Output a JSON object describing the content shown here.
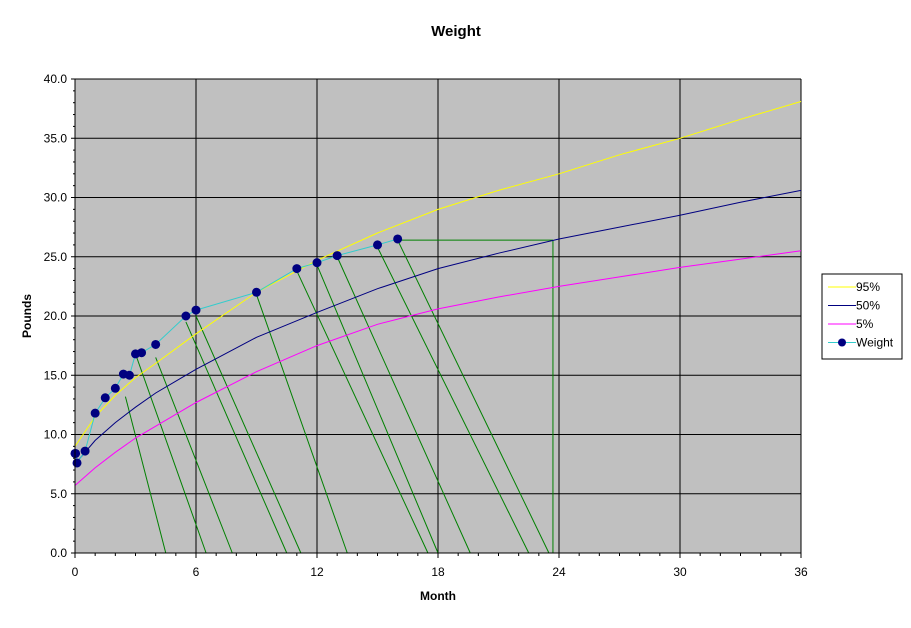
{
  "chart_data": {
    "type": "line",
    "title": "Weight",
    "xlabel": "Month",
    "ylabel": "Pounds",
    "xlim": [
      0,
      36
    ],
    "ylim": [
      0,
      40
    ],
    "x_ticks": [
      0,
      6,
      12,
      18,
      24,
      30,
      36
    ],
    "y_ticks": [
      0,
      5,
      10,
      15,
      20,
      25,
      30,
      35,
      40
    ],
    "x_tick_labels": [
      "0",
      "6",
      "12",
      "18",
      "24",
      "30",
      "36"
    ],
    "y_tick_labels": [
      "0.0",
      "5.0",
      "10.0",
      "15.0",
      "20.0",
      "25.0",
      "30.0",
      "35.0",
      "40.0"
    ],
    "grid": true,
    "legend_position": "right",
    "plot_background": "#c0c0c0",
    "series": [
      {
        "name": "95%",
        "color": "#ffff00",
        "marker": "none",
        "x": [
          0,
          1,
          2,
          3,
          4,
          6,
          9,
          12,
          15,
          18,
          21,
          24,
          27,
          30,
          33,
          36
        ],
        "y": [
          9.0,
          11.5,
          13.3,
          14.8,
          16.0,
          18.5,
          22.0,
          24.7,
          27.0,
          29.0,
          30.6,
          32.0,
          33.6,
          35.0,
          36.6,
          38.1
        ]
      },
      {
        "name": "50%",
        "color": "#000080",
        "marker": "none",
        "x": [
          0,
          1,
          2,
          3,
          4,
          6,
          9,
          12,
          15,
          18,
          21,
          24,
          27,
          30,
          33,
          36
        ],
        "y": [
          7.5,
          9.5,
          11.0,
          12.3,
          13.5,
          15.5,
          18.2,
          20.3,
          22.3,
          24.0,
          25.3,
          26.5,
          27.5,
          28.5,
          29.6,
          30.6
        ]
      },
      {
        "name": "5%",
        "color": "#ff00ff",
        "marker": "none",
        "x": [
          0,
          1,
          2,
          3,
          4,
          6,
          9,
          12,
          15,
          18,
          21,
          24,
          27,
          30,
          33,
          36
        ],
        "y": [
          5.7,
          7.2,
          8.5,
          9.7,
          10.7,
          12.7,
          15.3,
          17.5,
          19.3,
          20.6,
          21.6,
          22.5,
          23.3,
          24.1,
          24.8,
          25.5
        ]
      },
      {
        "name": "Weight",
        "color": "#33cccc",
        "marker": "circle",
        "marker_color": "#000080",
        "x": [
          0,
          0.03,
          0.1,
          0.5,
          1.0,
          1.5,
          2.0,
          2.4,
          2.7,
          3.0,
          3.3,
          4.0,
          5.5,
          6.0,
          9.0,
          11.0,
          12.0,
          13.0,
          15.0,
          16.0
        ],
        "y": [
          8.4,
          8.4,
          7.6,
          8.6,
          11.8,
          13.1,
          13.9,
          15.1,
          15.0,
          16.8,
          16.9,
          17.6,
          20.0,
          20.5,
          22.0,
          24.0,
          24.5,
          25.1,
          26.0,
          26.5
        ]
      }
    ],
    "annotation_color": "#008000",
    "annotation_segments": [
      {
        "from": [
          2.5,
          13.2
        ],
        "to": [
          4.5,
          0
        ]
      },
      {
        "from": [
          3.0,
          16.8
        ],
        "to": [
          6.5,
          0
        ]
      },
      {
        "from": [
          4.0,
          16.5
        ],
        "to": [
          7.8,
          0
        ]
      },
      {
        "from": [
          5.5,
          19.5
        ],
        "to": [
          10.5,
          0
        ]
      },
      {
        "from": [
          6.0,
          20.0
        ],
        "to": [
          11.2,
          0
        ]
      },
      {
        "from": [
          9.0,
          21.8
        ],
        "to": [
          13.5,
          0
        ]
      },
      {
        "from": [
          11.0,
          23.8
        ],
        "to": [
          17.5,
          0
        ]
      },
      {
        "from": [
          12.0,
          24.3
        ],
        "to": [
          18.0,
          0
        ]
      },
      {
        "from": [
          13.0,
          25.0
        ],
        "to": [
          19.6,
          0
        ]
      },
      {
        "from": [
          15.0,
          25.8
        ],
        "to": [
          22.5,
          0
        ]
      },
      {
        "from": [
          16.0,
          26.4
        ],
        "to": [
          23.5,
          0
        ]
      },
      {
        "from": [
          16.0,
          26.4
        ],
        "to": [
          23.7,
          26.4
        ]
      },
      {
        "from": [
          23.7,
          26.4
        ],
        "to": [
          23.7,
          0
        ]
      }
    ]
  }
}
